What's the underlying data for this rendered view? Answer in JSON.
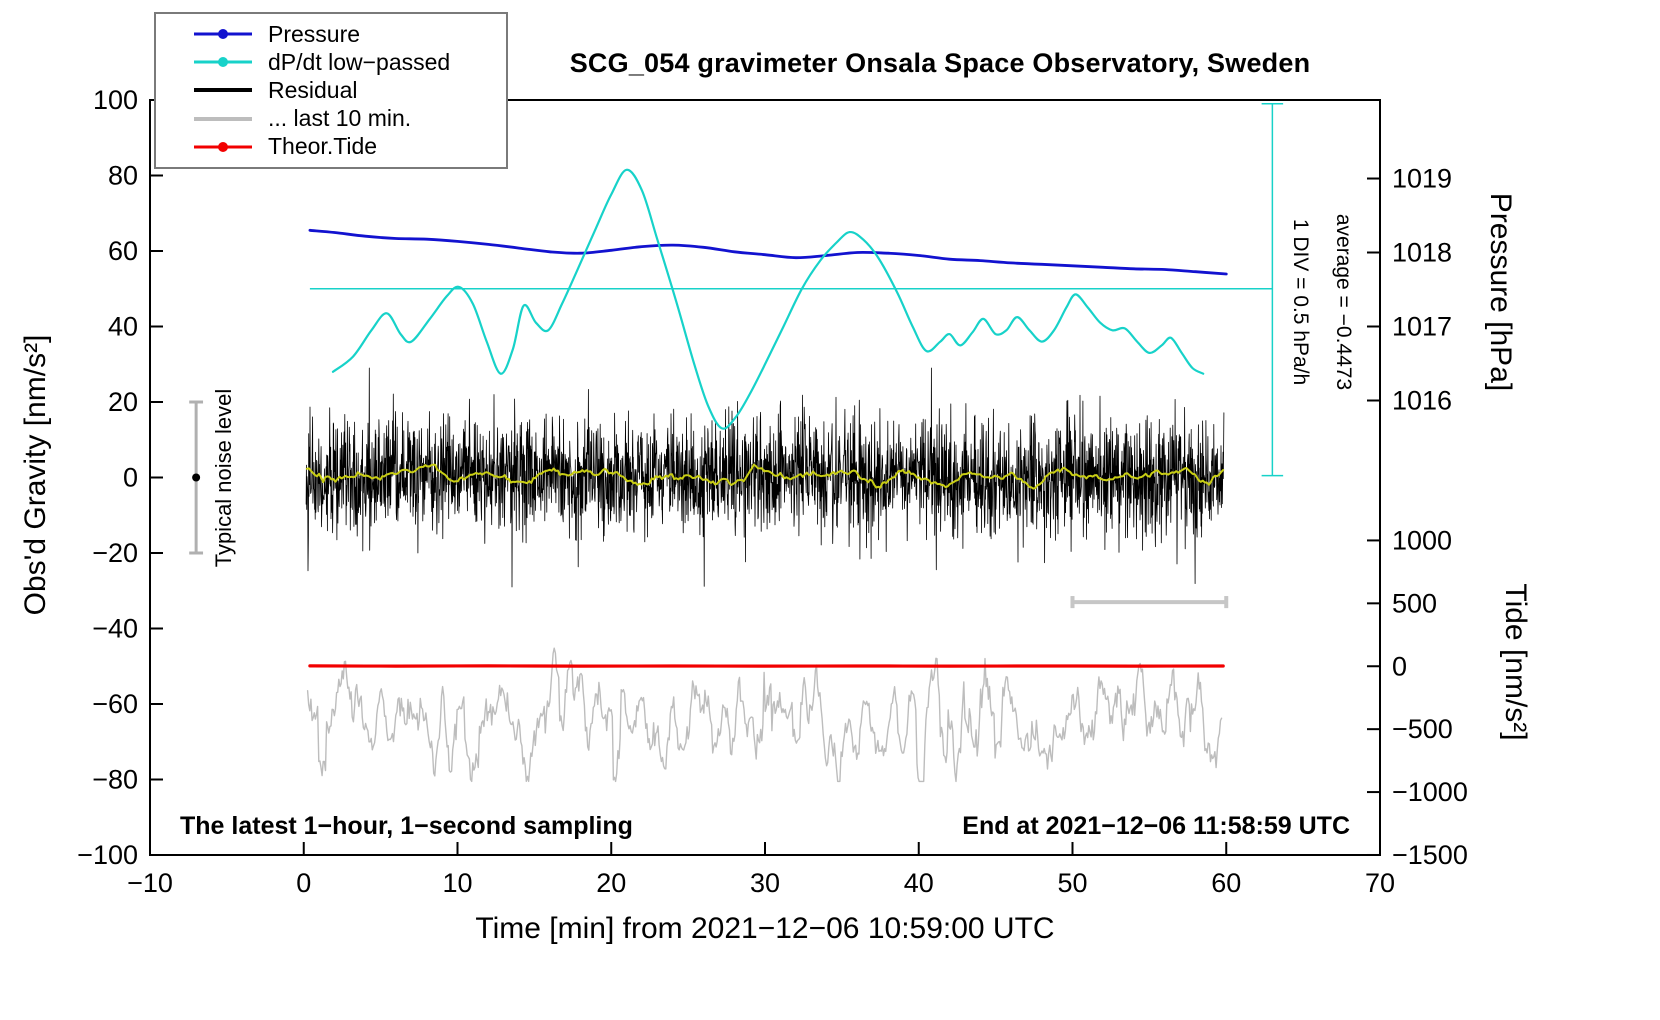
{
  "legend": {
    "position": "top-left",
    "items": [
      {
        "label": "Pressure",
        "color": "#1212cf",
        "marker": true,
        "thick": false
      },
      {
        "label": "dP/dt low−passed",
        "color": "#17d2c9",
        "marker": true,
        "thick": false
      },
      {
        "label": "Residual",
        "color": "#000000",
        "marker": false,
        "thick": true
      },
      {
        "label": "... last 10 min.",
        "color": "#bdbdbd",
        "marker": false,
        "thick": true
      },
      {
        "label": "Theor.Tide",
        "color": "#f20000",
        "marker": true,
        "thick": false
      }
    ]
  },
  "annotations": {
    "div_note": "1 DIV = 0.5 hPa/h",
    "average_note": "average = −0.4473",
    "noise_note": "Typical noise level",
    "sampling_note": "The latest 1−hour, 1−second sampling",
    "end_note": "End at 2021−12−06 11:58:59 UTC"
  },
  "chart_data": {
    "type": "line",
    "title": "SCG_054 gravimeter Onsala Space Observatory, Sweden",
    "grid": false,
    "axes": {
      "x": {
        "label": "Time [min] from 2021−12−06 10:59:00 UTC",
        "range": [
          -10,
          70
        ],
        "ticks": [
          -10,
          0,
          10,
          20,
          30,
          40,
          50,
          60,
          70
        ]
      },
      "y_left": {
        "label": "Obs'd Gravity [nm/s²]",
        "range": [
          -100,
          100
        ],
        "ticks": [
          -100,
          -80,
          -60,
          -40,
          -20,
          0,
          20,
          40,
          60,
          80,
          100
        ]
      },
      "pressure": {
        "label": "Pressure [hPa]",
        "ticks": [
          1019,
          1018,
          1017,
          1016
        ],
        "ref_value": 1017,
        "gravity_per_unit": 19.6,
        "gravity_at_ref": 40
      },
      "tide": {
        "label": "Tide [nm/s²]",
        "ticks": [
          1000,
          500,
          0,
          -500,
          -1000,
          -1500
        ],
        "gravity_per_unit": 0.03333,
        "gravity_at_zero": -50
      }
    },
    "series": [
      {
        "id": "last_10_min",
        "name": "... last 10 min.",
        "axis": "gravity",
        "color": "#bdbdbd",
        "width": 1.4,
        "smooth": false,
        "summary": "Amplified residual of the last 10 minutes; fast oscillation between about −80 and −40 nm/s² (≈ ±500 nm/s² on the Tide scale), centered near −65",
        "noise": {
          "seed": 7,
          "n": 820,
          "x_start": 0.25,
          "x_end": 59.7,
          "mean": -64.5,
          "std": 7,
          "smooth": 3,
          "spike_prob": 0.03,
          "spike_mult": 4,
          "clamp": [
            -80.5,
            -38
          ]
        }
      },
      {
        "id": "theor_tide",
        "name": "Theor.Tide",
        "axis": "tide",
        "units": "nm/s²",
        "color": "#f20000",
        "width": 3.2,
        "smooth": true,
        "points": [
          [
            0.4,
            3
          ],
          [
            6,
            1
          ],
          [
            12,
            3
          ],
          [
            18,
            1
          ],
          [
            24,
            2
          ],
          [
            30,
            1
          ],
          [
            36,
            2
          ],
          [
            42,
            1
          ],
          [
            48,
            2
          ],
          [
            54,
            1
          ],
          [
            59.8,
            2
          ]
        ]
      },
      {
        "id": "residual",
        "name": "Residual",
        "axis": "gravity",
        "color": "#000000",
        "width": 0.8,
        "smooth": false,
        "summary": "1-second residual gravity noise, zero-mean band of roughly ±10 nm/s² with spikes to about ±28 nm/s²",
        "noise": {
          "seed": 42,
          "n": 2800,
          "x_start": 0.15,
          "x_end": 59.85,
          "mean": 0.2,
          "std": 7.6,
          "smooth": 0,
          "spike_prob": 0.012,
          "spike_mult": 2.2,
          "clamp": [
            -29,
            29
          ]
        }
      },
      {
        "id": "residual_lowpass",
        "name": "Residual low-passed (yellow)",
        "axis": "gravity",
        "color": "#c9ce14",
        "width": 2,
        "smooth": false,
        "summary": "Slowly varying mean of the residual, within about ±2 nm/s² of zero",
        "noise": {
          "seed": 13,
          "n": 450,
          "x_start": 0.2,
          "x_end": 59.8,
          "mean": 0.35,
          "std": 1.2,
          "smooth": 5,
          "spike_prob": 0,
          "spike_mult": 1,
          "clamp": [
            -3,
            4
          ]
        }
      },
      {
        "id": "pressure",
        "name": "Pressure",
        "axis": "pressure",
        "units": "hPa",
        "color": "#1212cf",
        "width": 2.8,
        "smooth": true,
        "points": [
          [
            0.4,
            1018.3
          ],
          [
            2,
            1018.27
          ],
          [
            4,
            1018.22
          ],
          [
            6,
            1018.19
          ],
          [
            8,
            1018.18
          ],
          [
            10,
            1018.15
          ],
          [
            12,
            1018.11
          ],
          [
            14,
            1018.06
          ],
          [
            16,
            1018.01
          ],
          [
            18,
            1017.99
          ],
          [
            20,
            1018.03
          ],
          [
            22,
            1018.08
          ],
          [
            24,
            1018.1
          ],
          [
            26,
            1018.07
          ],
          [
            28,
            1018.01
          ],
          [
            30,
            1017.97
          ],
          [
            32,
            1017.93
          ],
          [
            34,
            1017.96
          ],
          [
            36,
            1018.0
          ],
          [
            38,
            1017.99
          ],
          [
            40,
            1017.96
          ],
          [
            42,
            1017.91
          ],
          [
            44,
            1017.89
          ],
          [
            46,
            1017.86
          ],
          [
            48,
            1017.84
          ],
          [
            50,
            1017.82
          ],
          [
            52,
            1017.8
          ],
          [
            54,
            1017.78
          ],
          [
            56,
            1017.77
          ],
          [
            58,
            1017.74
          ],
          [
            60,
            1017.71
          ]
        ]
      },
      {
        "id": "dpdt_lowpass",
        "name": "dP/dt low−passed",
        "axis": "gravity",
        "units": "plotted on gravity axis; 1 DIV = 0.5 hPa/h, baseline at 50",
        "color": "#17d2c9",
        "width": 2.2,
        "smooth": true,
        "points": [
          [
            1.9,
            28
          ],
          [
            3.2,
            32
          ],
          [
            4.4,
            39
          ],
          [
            5.4,
            43.5
          ],
          [
            6.3,
            38
          ],
          [
            7.0,
            36
          ],
          [
            8.2,
            42
          ],
          [
            9.3,
            48
          ],
          [
            10.1,
            50.5
          ],
          [
            11.0,
            46
          ],
          [
            11.9,
            36
          ],
          [
            12.8,
            27.5
          ],
          [
            13.6,
            34
          ],
          [
            14.3,
            45.5
          ],
          [
            15.1,
            41
          ],
          [
            15.9,
            39
          ],
          [
            16.8,
            46
          ],
          [
            17.8,
            55
          ],
          [
            19.0,
            66
          ],
          [
            20.0,
            75
          ],
          [
            21.0,
            81.5
          ],
          [
            22.0,
            76
          ],
          [
            23.0,
            63
          ],
          [
            24.2,
            47
          ],
          [
            25.4,
            30
          ],
          [
            26.3,
            19
          ],
          [
            27.2,
            13
          ],
          [
            28.1,
            16
          ],
          [
            29.0,
            22
          ],
          [
            30.0,
            30
          ],
          [
            31.2,
            40
          ],
          [
            32.4,
            50
          ],
          [
            33.6,
            57.5
          ],
          [
            34.6,
            62
          ],
          [
            35.5,
            65
          ],
          [
            36.4,
            63
          ],
          [
            37.4,
            58
          ],
          [
            38.6,
            49
          ],
          [
            39.6,
            40
          ],
          [
            40.5,
            33.5
          ],
          [
            41.4,
            36
          ],
          [
            42.0,
            38
          ],
          [
            42.7,
            35
          ],
          [
            43.5,
            38.5
          ],
          [
            44.2,
            42
          ],
          [
            45.0,
            38
          ],
          [
            45.7,
            39
          ],
          [
            46.4,
            42.5
          ],
          [
            47.2,
            39
          ],
          [
            48.0,
            36
          ],
          [
            48.8,
            39
          ],
          [
            49.6,
            45
          ],
          [
            50.2,
            48.5
          ],
          [
            51.0,
            45
          ],
          [
            51.8,
            41
          ],
          [
            52.6,
            39
          ],
          [
            53.4,
            39.5
          ],
          [
            54.2,
            36
          ],
          [
            55.0,
            33
          ],
          [
            55.8,
            35
          ],
          [
            56.4,
            37
          ],
          [
            57.1,
            33
          ],
          [
            57.8,
            29
          ],
          [
            58.5,
            27.5
          ]
        ]
      }
    ],
    "reference_marks": {
      "dpdt_baseline": {
        "y": 50,
        "x_range": [
          0.4,
          63
        ],
        "color": "#17d2c9"
      },
      "div_bracket": {
        "x": 63,
        "y_range": [
          0.5,
          99
        ],
        "cap_halfwidth": 0.7,
        "color": "#17d2c9"
      },
      "noise_level_marker": {
        "x": -7,
        "y_center": 0,
        "y_half": 20,
        "cap_halfwidth": 0.45,
        "bar_color": "#b0b0b0",
        "dot_color": "#000000"
      },
      "scale_bar": {
        "x_range": [
          50,
          60
        ],
        "y": -33,
        "cap_halfheight": 1.6,
        "color": "#c6c6c6"
      }
    }
  }
}
